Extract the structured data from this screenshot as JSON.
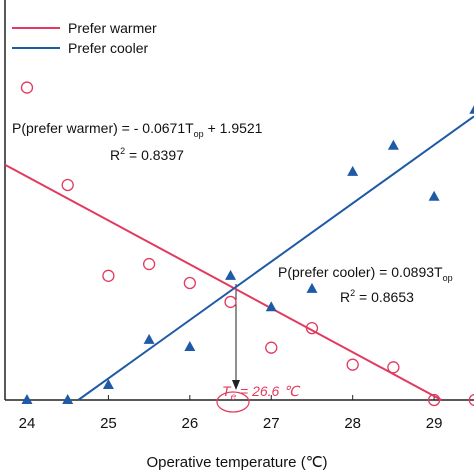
{
  "chart_data": {
    "type": "scatter",
    "x_label": "Operative temperature (℃)",
    "xlim": [
      23.73,
      29.49
    ],
    "xticks": [
      24,
      25,
      26,
      27,
      28,
      29
    ],
    "ylim": [
      0,
      0.612
    ],
    "legend": "upper left",
    "series": [
      {
        "name": "Prefer warmer",
        "color": "#e23a5e",
        "marker": "circle",
        "x": [
          24,
          24.5,
          25,
          25.5,
          26,
          26.5,
          27,
          27.5,
          28,
          28.5,
          29,
          29.5
        ],
        "values": [
          0.478,
          0.329,
          0.19,
          0.208,
          0.179,
          0.15,
          0.08,
          0.11,
          0.054,
          0.05,
          0,
          0
        ],
        "fit": {
          "x": [
            23.73,
            29.09
          ],
          "values": [
            0.36,
            0
          ]
        },
        "equation": {
          "lead": "P(prefer warmer) = - 0.0671T",
          "sub": "op",
          "tail": " + 1.9521"
        },
        "r2": {
          "lead": "R",
          "sup": "2",
          "tail": " = 0.8397"
        }
      },
      {
        "name": "Prefer cooler",
        "color": "#1f5aa6",
        "marker": "triangle",
        "x": [
          24,
          24.5,
          25,
          25.5,
          26,
          26.5,
          27,
          27.5,
          28,
          28.5,
          29,
          29.5
        ],
        "values": [
          0,
          0,
          0.023,
          0.092,
          0.081,
          0.19,
          0.142,
          0.17,
          0.349,
          0.389,
          0.311,
          0.444
        ],
        "fit": {
          "x": [
            24.63,
            29.49
          ],
          "values": [
            0,
            0.434
          ]
        },
        "equation": {
          "lead": "P(prefer cooler) = 0.0893T",
          "sub": "op",
          "tail": ""
        },
        "r2": {
          "lead": "R",
          "sup": "2",
          "tail": " = 0.8653"
        }
      }
    ],
    "annotation": {
      "lead": "T",
      "sub": "e",
      "tail": " = 26.6 ℃"
    }
  }
}
